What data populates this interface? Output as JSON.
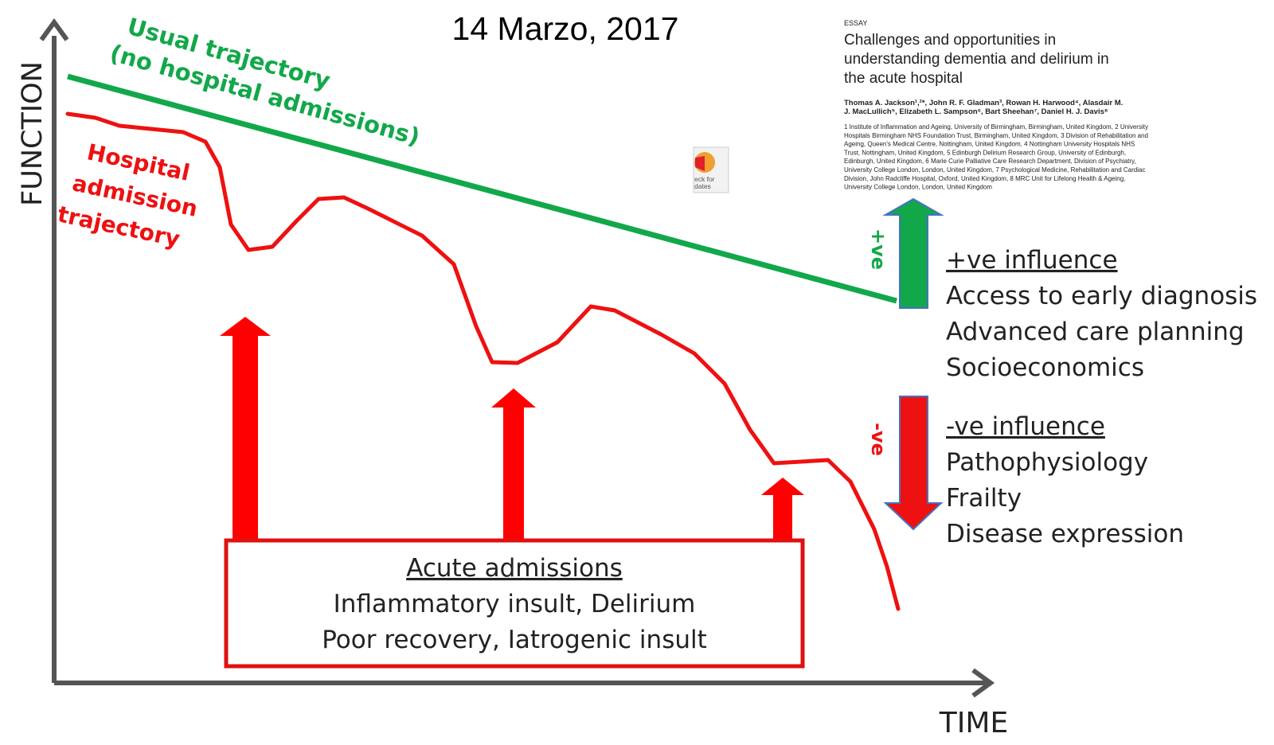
{
  "date": "14 Marzo, 2017",
  "axes": {
    "y_label": "FUNCTION",
    "x_label": "TIME"
  },
  "usual_trajectory": {
    "lines": [
      "Usual trajectory",
      "(no hospital admissions)"
    ]
  },
  "hospital_trajectory": {
    "lines": [
      "Hospital",
      "admission",
      "trajectory"
    ]
  },
  "acute_box": {
    "heading": "Acute admissions",
    "lines": [
      "Inflammatory insult, Delirium",
      "Poor recovery, Iatrogenic insult"
    ]
  },
  "positive": {
    "arrow_label": "+ve",
    "heading": "+ve influence",
    "items": [
      "Access to early diagnosis",
      "Advanced care planning",
      "Socioeconomics"
    ]
  },
  "negative": {
    "arrow_label": "-ve",
    "heading": "-ve influence",
    "items": [
      "Pathophysiology",
      "Frailty",
      "Disease expression"
    ]
  },
  "badge": {
    "lines": [
      "eck for",
      "dates"
    ]
  },
  "paper": {
    "kind": "ESSAY",
    "title_lines": [
      "Challenges and opportunities in",
      "understanding dementia and delirium in",
      "the acute hospital"
    ],
    "author_lines": [
      "Thomas A. Jackson¹,²*, John R. F. Gladman³, Rowan H. Harwood⁴, Alasdair M.",
      "J. MacLullich⁵, Elizabeth L. Sampson⁶, Bart Sheehan⁷, Daniel H. J. Davis⁸"
    ],
    "affiliation_lines": [
      "1 Institute of Inflammation and Ageing, University of Birmingham, Birmingham, United Kingdom, 2 University",
      "Hospitals Birmingham NHS Foundation Trust, Birmingham, United Kingdom, 3 Division of Rehabilitation and",
      "Ageing, Queen's Medical Centre, Nottingham, United Kingdom, 4 Nottingham University Hospitals NHS",
      "Trust, Nottingham, United Kingdom, 5 Edinburgh Delirium Research Group, University of Edinburgh,",
      "Edinburgh, United Kingdom, 6 Marie Curie Palliative Care Research Department, Division of Psychiatry,",
      "University College London, London, United Kingdom, 7 Psychological Medicine, Rehabilitation and Cardiac",
      "Division, John Radcliffe Hospital, Oxford, United Kingdom, 8 MRC Unit for Lifelong Health & Ageing,",
      "University College London, London, United Kingdom"
    ]
  }
}
